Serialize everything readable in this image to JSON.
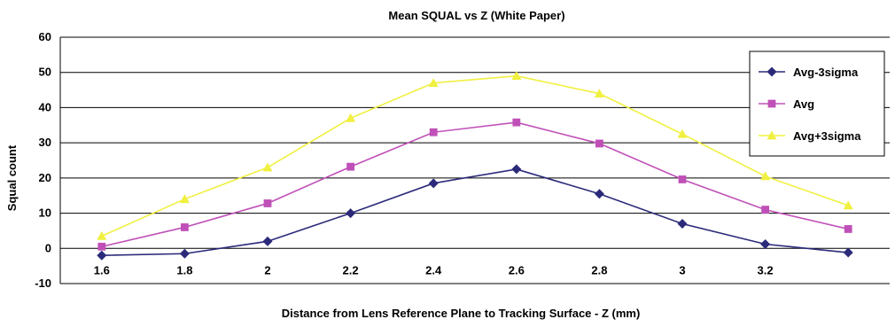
{
  "chart_data": {
    "type": "line",
    "title": "Mean SQUAL vs Z (White Paper)",
    "xlabel": "Distance from Lens Reference Plane to Tracking Surface - Z (mm)",
    "ylabel": "Squal count",
    "ylim": [
      -10,
      60
    ],
    "y_ticks": [
      -10,
      0,
      10,
      20,
      30,
      40,
      50,
      60
    ],
    "y_tick_labels": [
      "-10",
      "0",
      "10",
      "20",
      "30",
      "40",
      "50",
      "60"
    ],
    "categories": [
      "1.6",
      "1.8",
      "2",
      "2.2",
      "2.4",
      "2.6",
      "2.8",
      "3",
      "3.2",
      ""
    ],
    "grid": true,
    "legend": "right",
    "series": [
      {
        "name": "Avg-3sigma",
        "color": "#2b2a7a",
        "marker": "diamond",
        "values": [
          -2,
          -1.5,
          2,
          10,
          18.5,
          22.5,
          15.5,
          7,
          1.2,
          -1.2
        ]
      },
      {
        "name": "Avg",
        "color": "#c050b8",
        "marker": "square",
        "values": [
          0.5,
          6,
          12.8,
          23.2,
          33,
          35.8,
          29.8,
          19.6,
          11,
          5.5
        ]
      },
      {
        "name": "Avg+3sigma",
        "color": "#f0f040",
        "marker": "triangle",
        "values": [
          3.5,
          14,
          23,
          37,
          47,
          49,
          44,
          32.5,
          20.5,
          12.2
        ]
      }
    ]
  }
}
